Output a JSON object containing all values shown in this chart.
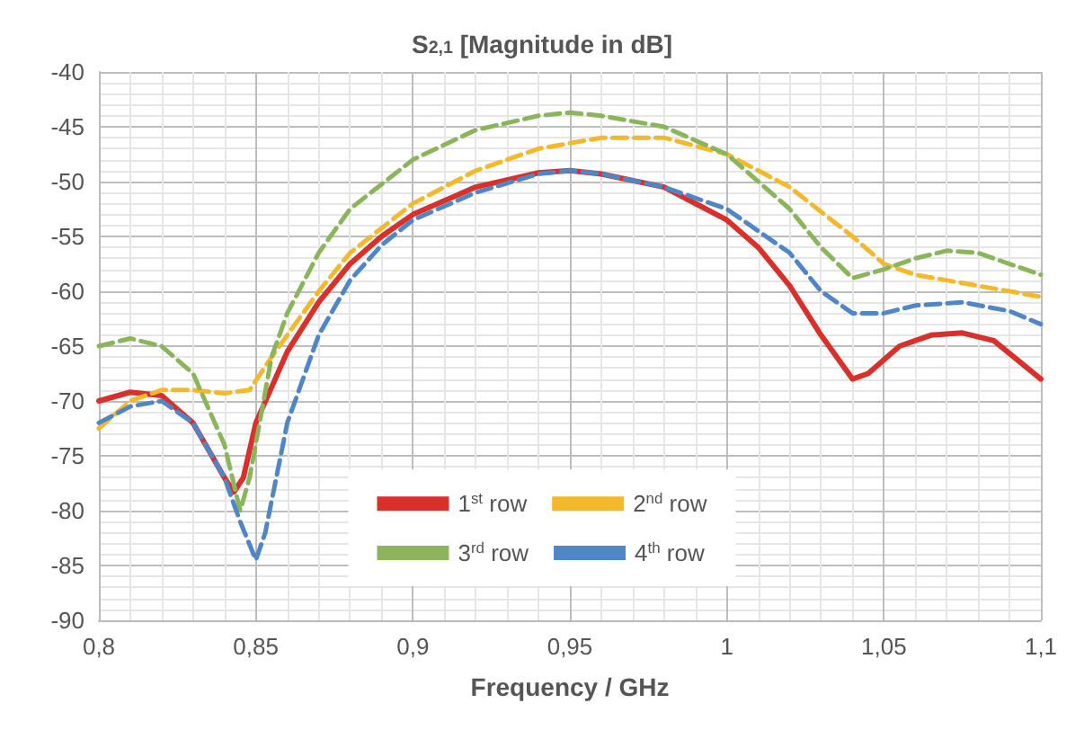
{
  "chart_data": {
    "type": "line",
    "title": "S$_{2,1}$ [Magnitude in dB]",
    "xlabel": "Frequency / GHz",
    "xlim": [
      0.8,
      1.1
    ],
    "xticks": [
      {
        "value": 0.8,
        "label": "0,8"
      },
      {
        "value": 0.85,
        "label": "0,85"
      },
      {
        "value": 0.9,
        "label": "0,9"
      },
      {
        "value": 0.95,
        "label": "0,95"
      },
      {
        "value": 1,
        "label": "1"
      },
      {
        "value": 1.05,
        "label": "1,05"
      },
      {
        "value": 1.1,
        "label": "1,1"
      }
    ],
    "ylim": [
      -90,
      -40
    ],
    "yticks": [
      -90,
      -85,
      -80,
      -75,
      -70,
      -65,
      -60,
      -55,
      -50,
      -45,
      -40
    ],
    "grid": true,
    "legend": "bottom",
    "marker": "none",
    "series": [
      {
        "name": "1$^{st}$ row",
        "color": "#d9302c",
        "line_style": "solid",
        "x": [
          0.8,
          0.81,
          0.82,
          0.83,
          0.84,
          0.843,
          0.846,
          0.85,
          0.86,
          0.87,
          0.88,
          0.89,
          0.9,
          0.92,
          0.94,
          0.95,
          0.96,
          0.98,
          1.0,
          1.01,
          1.02,
          1.03,
          1.04,
          1.045,
          1.055,
          1.065,
          1.075,
          1.085,
          1.1
        ],
        "values": [
          -70,
          -69.2,
          -69.5,
          -72,
          -77,
          -78.3,
          -77,
          -72,
          -65.5,
          -61,
          -57.5,
          -55,
          -53,
          -50.5,
          -49.2,
          -49,
          -49.3,
          -50.5,
          -53.5,
          -56,
          -59.5,
          -64,
          -68,
          -67.5,
          -65,
          -64,
          -63.8,
          -64.5,
          -68
        ]
      },
      {
        "name": "2$^{nd}$ row",
        "color": "#f4b92a",
        "line_style": "dashed",
        "x": [
          0.8,
          0.81,
          0.82,
          0.83,
          0.84,
          0.848,
          0.855,
          0.86,
          0.87,
          0.88,
          0.9,
          0.92,
          0.94,
          0.96,
          0.98,
          1.0,
          1.02,
          1.04,
          1.05,
          1.06,
          1.08,
          1.1
        ],
        "values": [
          -72.5,
          -70,
          -69,
          -69,
          -69.3,
          -69,
          -66,
          -64,
          -60,
          -56.5,
          -52,
          -49,
          -47,
          -46,
          -46,
          -47.5,
          -50.5,
          -55,
          -57.5,
          -58.5,
          -59.5,
          -60.5
        ]
      },
      {
        "name": "3$^{rd}$ row",
        "color": "#8ab55a",
        "line_style": "dashed",
        "x": [
          0.8,
          0.81,
          0.82,
          0.83,
          0.84,
          0.845,
          0.848,
          0.855,
          0.86,
          0.87,
          0.88,
          0.9,
          0.92,
          0.94,
          0.95,
          0.96,
          0.98,
          1.0,
          1.02,
          1.03,
          1.04,
          1.05,
          1.06,
          1.07,
          1.08,
          1.1
        ],
        "values": [
          -65,
          -64.3,
          -65,
          -67.5,
          -74,
          -80,
          -77,
          -66,
          -62,
          -56.5,
          -52.5,
          -48,
          -45.3,
          -44,
          -43.7,
          -44,
          -45,
          -47.5,
          -52.5,
          -56,
          -58.8,
          -58,
          -57,
          -56.3,
          -56.5,
          -58.5
        ]
      },
      {
        "name": "4$^{th}$ row",
        "color": "#4f86c6",
        "line_style": "dashed",
        "x": [
          0.8,
          0.81,
          0.82,
          0.83,
          0.84,
          0.845,
          0.85,
          0.853,
          0.86,
          0.87,
          0.88,
          0.89,
          0.9,
          0.92,
          0.94,
          0.95,
          0.96,
          0.98,
          1.0,
          1.02,
          1.03,
          1.04,
          1.05,
          1.06,
          1.075,
          1.09,
          1.1
        ],
        "values": [
          -72,
          -70.5,
          -70,
          -72,
          -77,
          -81,
          -84.5,
          -82,
          -72,
          -64,
          -59,
          -55.8,
          -53.5,
          -51,
          -49.3,
          -49,
          -49.3,
          -50.5,
          -52.5,
          -56.5,
          -60,
          -62,
          -62,
          -61.3,
          -61,
          -61.8,
          -63
        ]
      }
    ]
  }
}
